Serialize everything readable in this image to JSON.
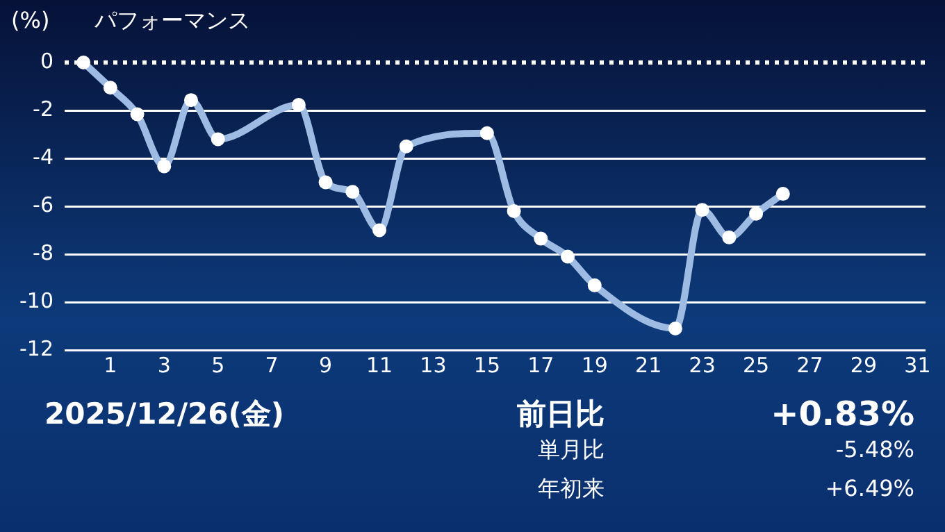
{
  "chart_data": {
    "type": "line",
    "title": "パフォーマンス",
    "ylabel": "(%)",
    "x": [
      0,
      1,
      2,
      3,
      4,
      5,
      8,
      9,
      10,
      11,
      12,
      15,
      16,
      17,
      18,
      19,
      22,
      23,
      24,
      25,
      26
    ],
    "series": [
      {
        "color": "#9dbbe3",
        "values": [
          0,
          -1.05,
          -2.16,
          -4.33,
          -1.57,
          -3.2,
          -1.77,
          -5.0,
          -5.4,
          -7.0,
          -3.5,
          -2.95,
          -6.2,
          -7.35,
          -8.1,
          -9.3,
          -11.1,
          -6.15,
          -7.3,
          -6.31,
          -5.48
        ]
      }
    ],
    "xlim": [
      -0.7,
      31.3
    ],
    "xticks": [
      1,
      3,
      5,
      7,
      9,
      11,
      13,
      15,
      17,
      19,
      21,
      23,
      25,
      27,
      29,
      31
    ],
    "ylim": [
      -12,
      0
    ],
    "yticks": [
      0,
      -2,
      -4,
      -6,
      -8,
      -10,
      -12
    ],
    "grid": "y",
    "legend": false,
    "marker": "circle",
    "line_style": "solid",
    "ref_lines": [
      {
        "axis": "y",
        "value": 0,
        "color": "#ffffff",
        "line_style": "dotted"
      }
    ],
    "annotations": [
      "2025/12/26(金)",
      "前日比",
      "+0.83%",
      "単月比",
      "-5.48%",
      "年初来",
      "+6.49%"
    ]
  }
}
